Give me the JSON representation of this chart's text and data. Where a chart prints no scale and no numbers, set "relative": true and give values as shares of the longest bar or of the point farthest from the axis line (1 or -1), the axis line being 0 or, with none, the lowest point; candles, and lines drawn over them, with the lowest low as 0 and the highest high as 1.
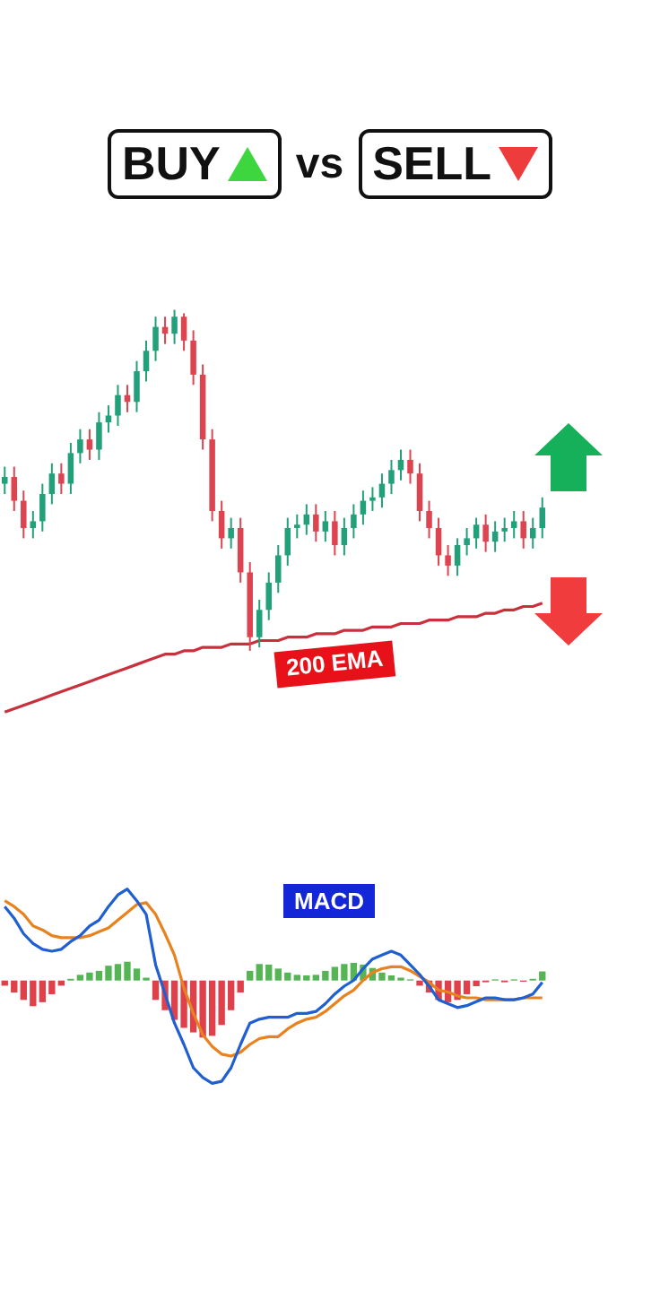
{
  "chart_data": [
    {
      "type": "candlestick",
      "title": "BUY vs SELL",
      "relative": true,
      "legend": false,
      "categories": [
        null,
        null,
        null,
        null,
        null,
        null,
        null,
        null,
        null,
        null,
        null,
        null,
        null,
        null,
        null,
        null,
        null,
        null,
        null,
        null,
        null,
        null,
        null,
        null,
        null,
        null,
        null,
        null,
        null,
        null,
        null,
        null,
        null,
        null,
        null,
        null,
        null,
        null,
        null,
        null,
        null,
        null,
        null,
        null,
        null,
        null,
        null,
        null,
        null,
        null,
        null,
        null,
        null,
        null,
        null,
        null,
        null,
        null
      ],
      "ohlc": [
        [
          0.49,
          0.54,
          0.46,
          0.51
        ],
        [
          0.51,
          0.54,
          0.41,
          0.44
        ],
        [
          0.44,
          0.47,
          0.33,
          0.36
        ],
        [
          0.36,
          0.41,
          0.33,
          0.38
        ],
        [
          0.38,
          0.49,
          0.35,
          0.46
        ],
        [
          0.46,
          0.55,
          0.43,
          0.52
        ],
        [
          0.52,
          0.55,
          0.46,
          0.49
        ],
        [
          0.49,
          0.61,
          0.46,
          0.58
        ],
        [
          0.58,
          0.65,
          0.55,
          0.62
        ],
        [
          0.62,
          0.65,
          0.56,
          0.59
        ],
        [
          0.59,
          0.7,
          0.56,
          0.67
        ],
        [
          0.67,
          0.72,
          0.64,
          0.69
        ],
        [
          0.69,
          0.78,
          0.66,
          0.75
        ],
        [
          0.75,
          0.78,
          0.7,
          0.73
        ],
        [
          0.73,
          0.85,
          0.7,
          0.82
        ],
        [
          0.82,
          0.91,
          0.79,
          0.88
        ],
        [
          0.88,
          0.98,
          0.85,
          0.95
        ],
        [
          0.95,
          0.98,
          0.9,
          0.93
        ],
        [
          0.93,
          1,
          0.9,
          0.98
        ],
        [
          0.98,
          0.99,
          0.88,
          0.91
        ],
        [
          0.91,
          0.94,
          0.78,
          0.81
        ],
        [
          0.81,
          0.84,
          0.59,
          0.62
        ],
        [
          0.62,
          0.65,
          0.38,
          0.41
        ],
        [
          0.41,
          0.44,
          0.3,
          0.33
        ],
        [
          0.33,
          0.39,
          0.3,
          0.36
        ],
        [
          0.36,
          0.39,
          0.2,
          0.23
        ],
        [
          0.23,
          0.26,
          0,
          0.04
        ],
        [
          0.04,
          0.15,
          0.01,
          0.12
        ],
        [
          0.12,
          0.23,
          0.09,
          0.2
        ],
        [
          0.2,
          0.31,
          0.17,
          0.28
        ],
        [
          0.28,
          0.39,
          0.25,
          0.36
        ],
        [
          0.36,
          0.4,
          0.33,
          0.37
        ],
        [
          0.37,
          0.43,
          0.34,
          0.4
        ],
        [
          0.4,
          0.43,
          0.32,
          0.35
        ],
        [
          0.35,
          0.41,
          0.32,
          0.38
        ],
        [
          0.38,
          0.41,
          0.28,
          0.31
        ],
        [
          0.31,
          0.39,
          0.28,
          0.36
        ],
        [
          0.36,
          0.43,
          0.33,
          0.4
        ],
        [
          0.4,
          0.47,
          0.37,
          0.44
        ],
        [
          0.44,
          0.48,
          0.41,
          0.45
        ],
        [
          0.45,
          0.52,
          0.42,
          0.49
        ],
        [
          0.49,
          0.56,
          0.46,
          0.53
        ],
        [
          0.53,
          0.59,
          0.5,
          0.56
        ],
        [
          0.56,
          0.59,
          0.49,
          0.52
        ],
        [
          0.52,
          0.55,
          0.38,
          0.41
        ],
        [
          0.41,
          0.44,
          0.33,
          0.36
        ],
        [
          0.36,
          0.39,
          0.25,
          0.28
        ],
        [
          0.28,
          0.31,
          0.22,
          0.25
        ],
        [
          0.25,
          0.33,
          0.22,
          0.31
        ],
        [
          0.31,
          0.36,
          0.28,
          0.33
        ],
        [
          0.33,
          0.39,
          0.3,
          0.37
        ],
        [
          0.37,
          0.4,
          0.29,
          0.32
        ],
        [
          0.32,
          0.38,
          0.29,
          0.35
        ],
        [
          0.35,
          0.39,
          0.32,
          0.36
        ],
        [
          0.36,
          0.41,
          0.33,
          0.38
        ],
        [
          0.38,
          0.41,
          0.3,
          0.33
        ],
        [
          0.33,
          0.39,
          0.3,
          0.36
        ],
        [
          0.36,
          0.45,
          0.33,
          0.42
        ]
      ],
      "colors": [
        "#22a07a",
        "#dd4450",
        "#dd4450",
        "#22a07a",
        "#22a07a",
        "#22a07a",
        "#dd4450",
        "#22a07a",
        "#22a07a",
        "#dd4450",
        "#22a07a",
        "#22a07a",
        "#22a07a",
        "#dd4450",
        "#22a07a",
        "#22a07a",
        "#22a07a",
        "#dd4450",
        "#22a07a",
        "#dd4450",
        "#dd4450",
        "#dd4450",
        "#dd4450",
        "#dd4450",
        "#22a07a",
        "#dd4450",
        "#dd4450",
        "#22a07a",
        "#22a07a",
        "#22a07a",
        "#22a07a",
        "#22a07a",
        "#22a07a",
        "#dd4450",
        "#22a07a",
        "#dd4450",
        "#22a07a",
        "#22a07a",
        "#22a07a",
        "#22a07a",
        "#22a07a",
        "#22a07a",
        "#22a07a",
        "#dd4450",
        "#dd4450",
        "#dd4450",
        "#dd4450",
        "#dd4450",
        "#22a07a",
        "#22a07a",
        "#22a07a",
        "#dd4450",
        "#22a07a",
        "#22a07a",
        "#22a07a",
        "#dd4450",
        "#22a07a",
        "#22a07a"
      ],
      "series": [
        {
          "type": "line",
          "name": "200 EMA",
          "color": "#c8303c",
          "values": [
            -0.18,
            -0.17,
            -0.16,
            -0.15,
            -0.14,
            -0.13,
            -0.12,
            -0.11,
            -0.1,
            -0.09,
            -0.08,
            -0.07,
            -0.06,
            -0.05,
            -0.04,
            -0.03,
            -0.02,
            -0.01,
            -0.01,
            0,
            0,
            0.01,
            0.01,
            0.01,
            0.02,
            0.02,
            0.02,
            0.03,
            0.03,
            0.03,
            0.04,
            0.04,
            0.04,
            0.05,
            0.05,
            0.05,
            0.06,
            0.06,
            0.06,
            0.07,
            0.07,
            0.07,
            0.08,
            0.08,
            0.08,
            0.09,
            0.09,
            0.09,
            0.1,
            0.1,
            0.1,
            0.11,
            0.11,
            0.12,
            0.12,
            0.13,
            0.13,
            0.14
          ]
        }
      ]
    },
    {
      "type": "bar",
      "relative": true,
      "legend": false,
      "categories": [
        null,
        null,
        null,
        null,
        null,
        null,
        null,
        null,
        null,
        null,
        null,
        null,
        null,
        null,
        null,
        null,
        null,
        null,
        null,
        null,
        null,
        null,
        null,
        null,
        null,
        null,
        null,
        null,
        null,
        null,
        null,
        null,
        null,
        null,
        null,
        null,
        null,
        null,
        null,
        null,
        null,
        null,
        null,
        null,
        null,
        null,
        null,
        null,
        null,
        null,
        null,
        null,
        null,
        null,
        null,
        null,
        null,
        null
      ],
      "series": [
        {
          "type": "bar",
          "values": [
            -0.09,
            -0.21,
            -0.34,
            -0.45,
            -0.38,
            -0.24,
            -0.09,
            0.03,
            0.1,
            0.14,
            0.17,
            0.26,
            0.29,
            0.33,
            0.21,
            0.05,
            -0.34,
            -0.52,
            -0.69,
            -0.83,
            -0.91,
            -1,
            -0.97,
            -0.78,
            -0.52,
            -0.21,
            0.17,
            0.29,
            0.28,
            0.21,
            0.14,
            0.1,
            0.09,
            0.1,
            0.17,
            0.24,
            0.29,
            0.31,
            0.28,
            0.22,
            0.14,
            0.09,
            0.05,
            0.02,
            -0.09,
            -0.21,
            -0.34,
            -0.38,
            -0.34,
            -0.24,
            -0.1,
            -0.03,
            0.02,
            -0.03,
            0.02,
            -0.02,
            0.03,
            0.16
          ],
          "colors": [
            "#e0404a",
            "#e0404a",
            "#e0404a",
            "#e0404a",
            "#e0404a",
            "#e0404a",
            "#e0404a",
            "#55b555",
            "#55b555",
            "#55b555",
            "#55b555",
            "#55b555",
            "#55b555",
            "#55b555",
            "#55b555",
            "#55b555",
            "#e0404a",
            "#e0404a",
            "#e0404a",
            "#e0404a",
            "#e0404a",
            "#e0404a",
            "#e0404a",
            "#e0404a",
            "#e0404a",
            "#e0404a",
            "#55b555",
            "#55b555",
            "#55b555",
            "#55b555",
            "#55b555",
            "#55b555",
            "#55b555",
            "#55b555",
            "#55b555",
            "#55b555",
            "#55b555",
            "#55b555",
            "#55b555",
            "#55b555",
            "#55b555",
            "#55b555",
            "#55b555",
            "#55b555",
            "#e0404a",
            "#e0404a",
            "#e0404a",
            "#e0404a",
            "#e0404a",
            "#e0404a",
            "#e0404a",
            "#e0404a",
            "#55b555",
            "#e0404a",
            "#55b555",
            "#e0404a",
            "#55b555",
            "#55b555"
          ]
        }
      ]
    },
    {
      "type": "line",
      "title": "MACD",
      "relative": true,
      "legend": false,
      "categories": [
        null,
        null,
        null,
        null,
        null,
        null,
        null,
        null,
        null,
        null,
        null,
        null,
        null,
        null,
        null,
        null,
        null,
        null,
        null,
        null,
        null,
        null,
        null,
        null,
        null,
        null,
        null,
        null,
        null,
        null,
        null,
        null,
        null,
        null,
        null,
        null,
        null,
        null,
        null,
        null,
        null,
        null,
        null,
        null,
        null,
        null,
        null,
        null,
        null,
        null,
        null,
        null,
        null,
        null,
        null,
        null,
        null,
        null
      ],
      "series": [
        {
          "color": "#1f5fd1",
          "values": [
            0.91,
            0.85,
            0.77,
            0.72,
            0.69,
            0.68,
            0.69,
            0.73,
            0.76,
            0.81,
            0.84,
            0.91,
            0.97,
            1,
            0.94,
            0.87,
            0.61,
            0.46,
            0.31,
            0.2,
            0.08,
            0.03,
            0,
            0.01,
            0.08,
            0.2,
            0.31,
            0.33,
            0.34,
            0.34,
            0.34,
            0.36,
            0.36,
            0.37,
            0.41,
            0.46,
            0.5,
            0.53,
            0.59,
            0.64,
            0.66,
            0.68,
            0.66,
            0.61,
            0.56,
            0.5,
            0.43,
            0.41,
            0.39,
            0.4,
            0.42,
            0.44,
            0.44,
            0.43,
            0.43,
            0.44,
            0.46,
            0.52
          ]
        },
        {
          "color": "#e8821f",
          "values": [
            0.94,
            0.91,
            0.87,
            0.81,
            0.79,
            0.76,
            0.75,
            0.75,
            0.75,
            0.76,
            0.78,
            0.8,
            0.84,
            0.88,
            0.92,
            0.93,
            0.87,
            0.77,
            0.66,
            0.49,
            0.36,
            0.25,
            0.19,
            0.15,
            0.14,
            0.16,
            0.2,
            0.23,
            0.24,
            0.24,
            0.28,
            0.31,
            0.33,
            0.34,
            0.37,
            0.41,
            0.45,
            0.48,
            0.53,
            0.57,
            0.59,
            0.6,
            0.6,
            0.58,
            0.55,
            0.52,
            0.48,
            0.47,
            0.45,
            0.44,
            0.44,
            0.43,
            0.43,
            0.43,
            0.43,
            0.44,
            0.44,
            0.44
          ]
        }
      ]
    }
  ]
}
